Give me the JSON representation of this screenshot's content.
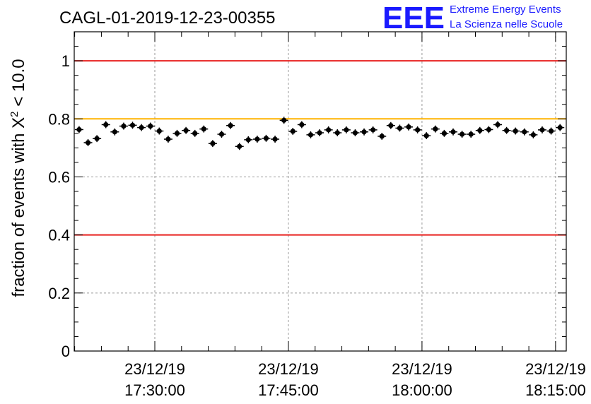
{
  "logo": {
    "mark": "EEE",
    "line1": "Extreme Energy Events",
    "line2": "La Scienza nelle Scuole"
  },
  "colors": {
    "red_line": "#e8211f",
    "orange_line": "#ffb300",
    "logo_blue": "#1a1aff",
    "points": "#000000",
    "grid": "#9a9a9a"
  },
  "chart_data": {
    "type": "scatter",
    "title": "CAGL-01-2019-12-23-00355",
    "ylabel": "fraction of events with χ² < 10.0",
    "ylabel_parts": {
      "prefix": "fraction of events with ",
      "symbol": "X",
      "sup": "2",
      "suffix": " < 10.0"
    },
    "xlabel": "",
    "ylim": [
      0,
      1.1
    ],
    "xlim": [
      "23/12/19 17:20:57",
      "23/12/19 18:16:12"
    ],
    "yticks": [
      "0",
      "0.2",
      "0.4",
      "0.6",
      "0.8",
      "1"
    ],
    "xticks": [
      {
        "date": "23/12/19",
        "time": "17:30:00"
      },
      {
        "date": "23/12/19",
        "time": "17:45:00"
      },
      {
        "date": "23/12/19",
        "time": "18:00:00"
      },
      {
        "date": "23/12/19",
        "time": "18:15:00"
      }
    ],
    "grid": true,
    "reference_lines": [
      {
        "y": 1.0,
        "color": "#e8211f"
      },
      {
        "y": 0.8,
        "color": "#ffb300"
      },
      {
        "y": 0.4,
        "color": "#e8211f"
      }
    ],
    "series": [
      {
        "x": [
          "17:21:30",
          "17:22:30",
          "17:23:30",
          "17:24:30",
          "17:25:30",
          "17:26:30",
          "17:27:30",
          "17:28:30",
          "17:29:30",
          "17:30:30",
          "17:31:30",
          "17:32:30",
          "17:33:30",
          "17:34:30",
          "17:35:30",
          "17:36:30",
          "17:37:30",
          "17:38:30",
          "17:39:30",
          "17:40:30",
          "17:41:30",
          "17:42:30",
          "17:43:30",
          "17:44:30",
          "17:45:30",
          "17:46:30",
          "17:47:30",
          "17:48:30",
          "17:49:30",
          "17:50:30",
          "17:51:30",
          "17:52:30",
          "17:53:30",
          "17:54:30",
          "17:55:30",
          "17:56:30",
          "17:57:30",
          "17:58:30",
          "17:59:30",
          "18:00:30",
          "18:01:30",
          "18:02:30",
          "18:03:30",
          "18:04:30",
          "18:05:30",
          "18:06:30",
          "18:07:30",
          "18:08:30",
          "18:09:30",
          "18:10:30",
          "18:11:30",
          "18:12:30",
          "18:13:30",
          "18:14:30",
          "18:15:30"
        ],
        "values": [
          0.763,
          0.718,
          0.732,
          0.78,
          0.755,
          0.775,
          0.778,
          0.77,
          0.775,
          0.758,
          0.73,
          0.75,
          0.76,
          0.75,
          0.765,
          0.715,
          0.747,
          0.777,
          0.705,
          0.728,
          0.73,
          0.733,
          0.73,
          0.795,
          0.757,
          0.78,
          0.745,
          0.752,
          0.762,
          0.752,
          0.762,
          0.752,
          0.755,
          0.762,
          0.74,
          0.777,
          0.768,
          0.772,
          0.762,
          0.742,
          0.765,
          0.75,
          0.755,
          0.747,
          0.747,
          0.76,
          0.763,
          0.78,
          0.76,
          0.758,
          0.755,
          0.745,
          0.762,
          0.758,
          0.77
        ],
        "error": 0.012
      }
    ]
  }
}
